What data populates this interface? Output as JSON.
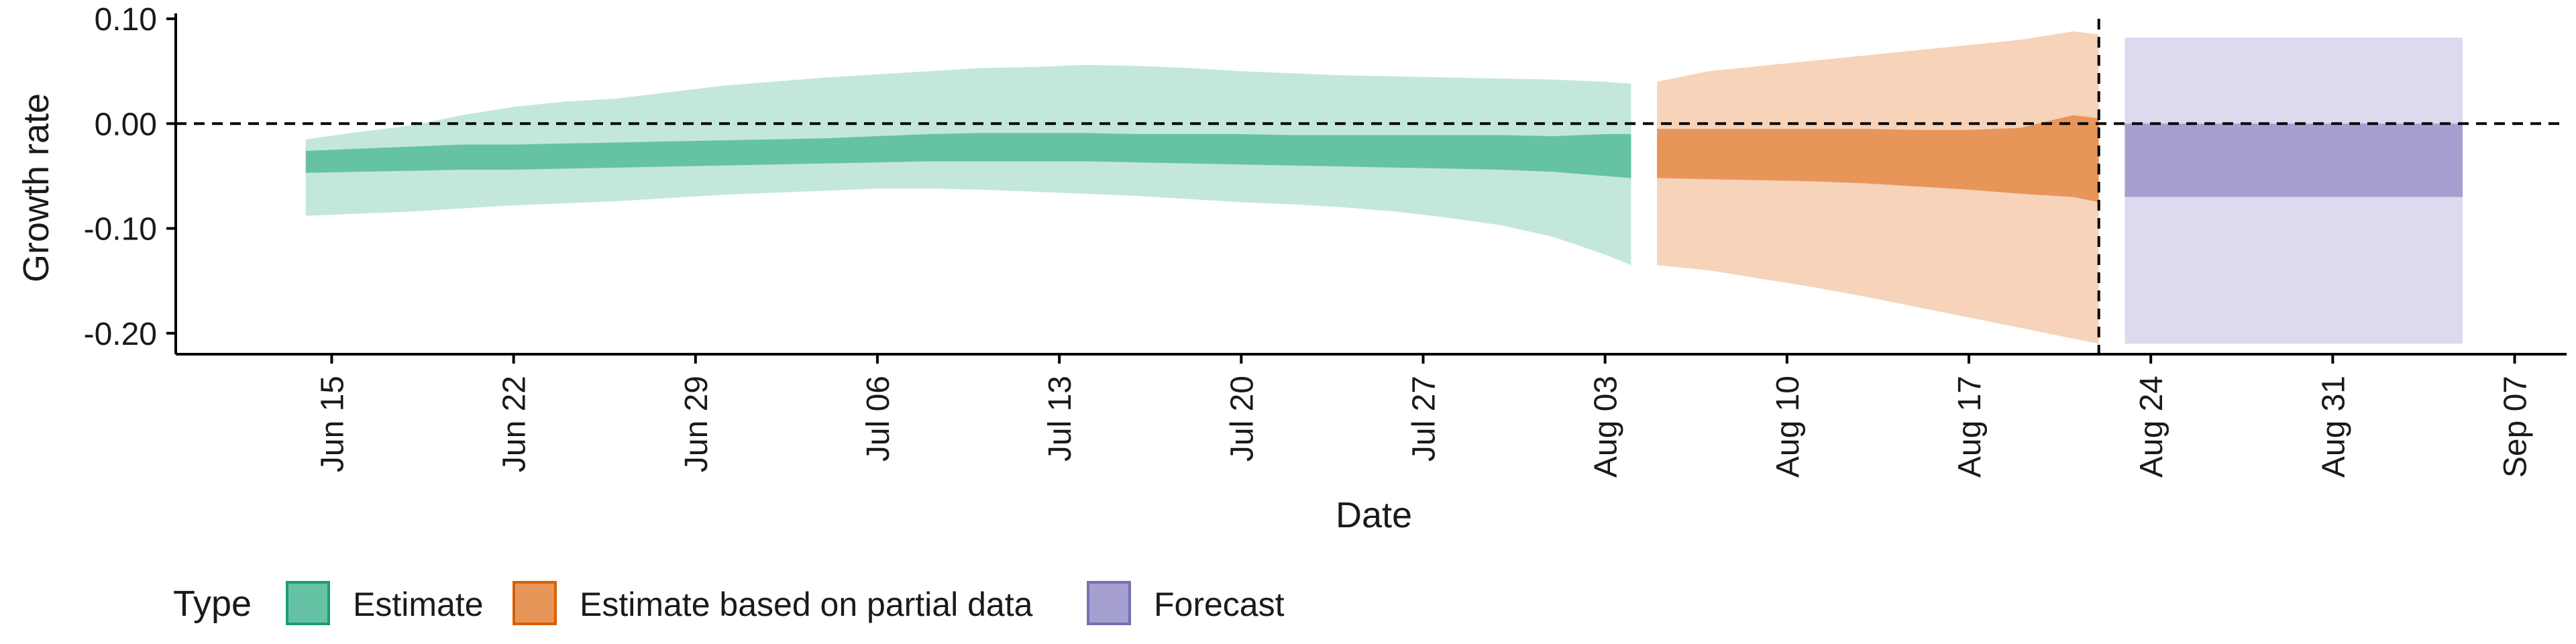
{
  "chart_data": {
    "type": "area",
    "title": "",
    "xlabel": "Date",
    "ylabel": "Growth rate",
    "x_ticks": [
      "Jun 15",
      "Jun 22",
      "Jun 29",
      "Jul 06",
      "Jul 13",
      "Jul 20",
      "Jul 27",
      "Aug 03",
      "Aug 10",
      "Aug 17",
      "Aug 24",
      "Aug 31",
      "Sep 07"
    ],
    "y_ticks": [
      "0.10",
      "0.00",
      "-0.10",
      "-0.20"
    ],
    "y_tick_values": [
      0.1,
      0.0,
      -0.1,
      -0.2
    ],
    "xlim": [
      "2020-06-09",
      "2020-09-09"
    ],
    "ylim": [
      -0.22,
      0.1
    ],
    "reference_lines": [
      {
        "axis": "y",
        "value": 0.0,
        "style": "dashed"
      },
      {
        "axis": "x",
        "value": "2020-08-22",
        "style": "dashed"
      }
    ],
    "legend": {
      "title": "Type",
      "position": "bottom-left",
      "items": [
        {
          "label": "Estimate",
          "fill": "#66c2a5",
          "border": "#1b9e77"
        },
        {
          "label": "Estimate based on partial data",
          "fill": "#e8955a",
          "border": "#d95f02"
        },
        {
          "label": "Forecast",
          "fill": "#a5a0d0",
          "border": "#7570b3"
        }
      ]
    },
    "series": [
      {
        "name": "Estimate",
        "outer_color": "#c4e7dc",
        "inner_color": "#66c2a5",
        "x": [
          "2020-06-14",
          "2020-06-16",
          "2020-06-18",
          "2020-06-20",
          "2020-06-22",
          "2020-06-24",
          "2020-06-26",
          "2020-06-28",
          "2020-06-30",
          "2020-07-02",
          "2020-07-04",
          "2020-07-06",
          "2020-07-08",
          "2020-07-10",
          "2020-07-12",
          "2020-07-14",
          "2020-07-16",
          "2020-07-18",
          "2020-07-20",
          "2020-07-22",
          "2020-07-24",
          "2020-07-26",
          "2020-07-28",
          "2020-07-30",
          "2020-08-01",
          "2020-08-03",
          "2020-08-04"
        ],
        "upper90": [
          -0.015,
          -0.008,
          -0.002,
          0.008,
          0.016,
          0.021,
          0.024,
          0.03,
          0.036,
          0.04,
          0.044,
          0.047,
          0.05,
          0.053,
          0.054,
          0.056,
          0.055,
          0.053,
          0.05,
          0.048,
          0.046,
          0.045,
          0.044,
          0.043,
          0.042,
          0.04,
          0.038
        ],
        "upper50": [
          -0.026,
          -0.024,
          -0.022,
          -0.02,
          -0.02,
          -0.019,
          -0.018,
          -0.017,
          -0.016,
          -0.015,
          -0.014,
          -0.012,
          -0.01,
          -0.009,
          -0.009,
          -0.009,
          -0.01,
          -0.01,
          -0.01,
          -0.011,
          -0.011,
          -0.011,
          -0.011,
          -0.011,
          -0.012,
          -0.01,
          -0.01
        ],
        "lower50": [
          -0.047,
          -0.046,
          -0.045,
          -0.044,
          -0.044,
          -0.043,
          -0.042,
          -0.041,
          -0.04,
          -0.039,
          -0.038,
          -0.037,
          -0.036,
          -0.036,
          -0.036,
          -0.036,
          -0.037,
          -0.038,
          -0.039,
          -0.04,
          -0.041,
          -0.042,
          -0.043,
          -0.044,
          -0.046,
          -0.05,
          -0.052
        ],
        "lower90": [
          -0.088,
          -0.086,
          -0.084,
          -0.081,
          -0.078,
          -0.076,
          -0.074,
          -0.071,
          -0.068,
          -0.066,
          -0.064,
          -0.062,
          -0.062,
          -0.063,
          -0.065,
          -0.067,
          -0.069,
          -0.072,
          -0.075,
          -0.077,
          -0.08,
          -0.084,
          -0.09,
          -0.097,
          -0.108,
          -0.125,
          -0.135
        ]
      },
      {
        "name": "Estimate based on partial data",
        "outer_color": "#f6d3b9",
        "inner_color": "#e8955a",
        "x": [
          "2020-08-05",
          "2020-08-07",
          "2020-08-09",
          "2020-08-11",
          "2020-08-13",
          "2020-08-15",
          "2020-08-17",
          "2020-08-19",
          "2020-08-21",
          "2020-08-22"
        ],
        "upper90": [
          0.04,
          0.05,
          0.055,
          0.06,
          0.065,
          0.07,
          0.075,
          0.08,
          0.088,
          0.085
        ],
        "upper50": [
          -0.005,
          -0.005,
          -0.005,
          -0.005,
          -0.005,
          -0.006,
          -0.006,
          -0.004,
          0.008,
          0.005
        ],
        "lower50": [
          -0.052,
          -0.053,
          -0.054,
          -0.055,
          -0.057,
          -0.06,
          -0.063,
          -0.067,
          -0.07,
          -0.075
        ],
        "lower90": [
          -0.135,
          -0.14,
          -0.148,
          -0.156,
          -0.165,
          -0.175,
          -0.185,
          -0.195,
          -0.205,
          -0.21
        ]
      },
      {
        "name": "Forecast",
        "outer_color": "#dcdaee",
        "inner_color": "#a5a0d0",
        "x": [
          "2020-08-23",
          "2020-09-05"
        ],
        "upper90": [
          0.082,
          0.082
        ],
        "upper50": [
          0.0,
          0.0
        ],
        "lower50": [
          -0.07,
          -0.07
        ],
        "lower90": [
          -0.21,
          -0.21
        ]
      }
    ]
  }
}
